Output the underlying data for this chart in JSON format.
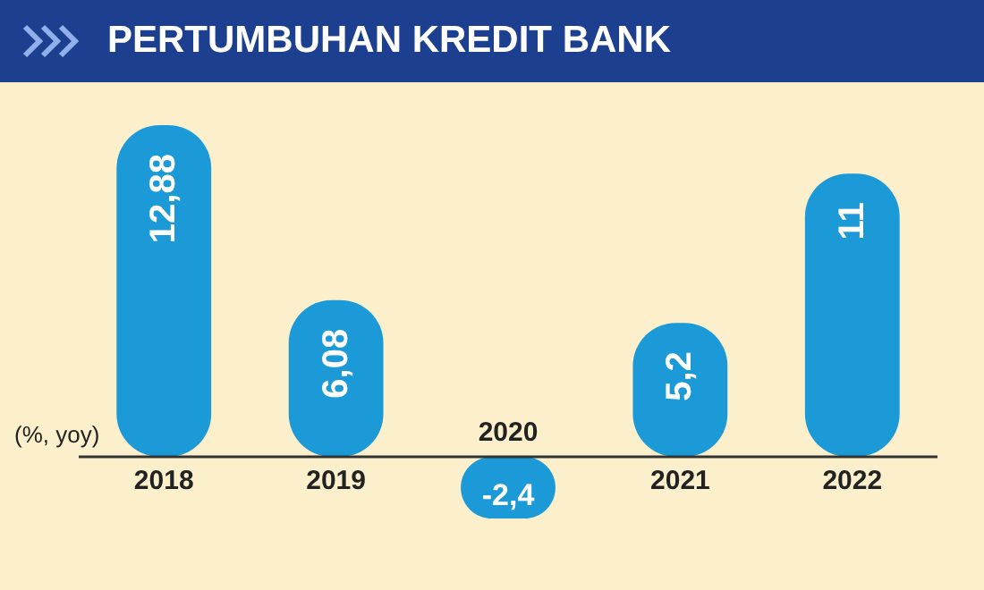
{
  "chart_data": {
    "type": "bar",
    "title": "PERTUMBUHAN KREDIT BANK",
    "ylabel": "(%, yoy)",
    "categories": [
      "2018",
      "2019",
      "2020",
      "2021",
      "2022"
    ],
    "values": [
      12.88,
      6.08,
      -2.4,
      5.2,
      11
    ],
    "value_labels": [
      "12,88",
      "6,08",
      "-2,4",
      "5,2",
      "11"
    ],
    "color": "#1b9ad7"
  }
}
